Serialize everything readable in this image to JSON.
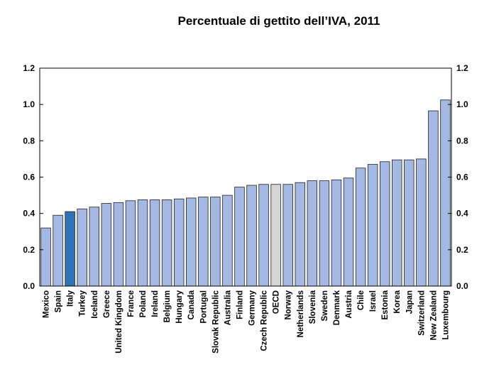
{
  "chart_data": {
    "type": "bar",
    "title": "Percentuale di gettito dell’IVA, 2011",
    "xlabel": "",
    "ylabel": "",
    "ylim": [
      0,
      1.2
    ],
    "yticks": [
      "0.0",
      "0.2",
      "0.4",
      "0.6",
      "0.8",
      "1.0",
      "1.2"
    ],
    "grid": false,
    "colors": {
      "default": "#a3b9e3",
      "highlight": "#2e74b5",
      "average": "#d4d4d4",
      "edge": "#1f1f1f"
    },
    "highlight": [
      "Italy"
    ],
    "average": [
      "OECD"
    ],
    "categories": [
      "Mexico",
      "Spain",
      "Italy",
      "Turkey",
      "Iceland",
      "Greece",
      "United Kingdom",
      "France",
      "Poland",
      "Ireland",
      "Belgium",
      "Hungary",
      "Canada",
      "Portugal",
      "Slovak Republic",
      "Australia",
      "Finland",
      "Germany",
      "Czech Republic",
      "OECD",
      "Norway",
      "Netherlands",
      "Slovenia",
      "Sweden",
      "Denmark",
      "Austria",
      "Chile",
      "Israel",
      "Estonia",
      "Korea",
      "Japan",
      "Switzerland",
      "New Zealand",
      "Luxembourg"
    ],
    "values": [
      0.32,
      0.39,
      0.41,
      0.425,
      0.435,
      0.455,
      0.46,
      0.47,
      0.475,
      0.475,
      0.475,
      0.48,
      0.485,
      0.49,
      0.49,
      0.5,
      0.545,
      0.555,
      0.56,
      0.56,
      0.56,
      0.57,
      0.58,
      0.58,
      0.585,
      0.595,
      0.65,
      0.67,
      0.685,
      0.695,
      0.695,
      0.7,
      0.965,
      1.025
    ]
  }
}
